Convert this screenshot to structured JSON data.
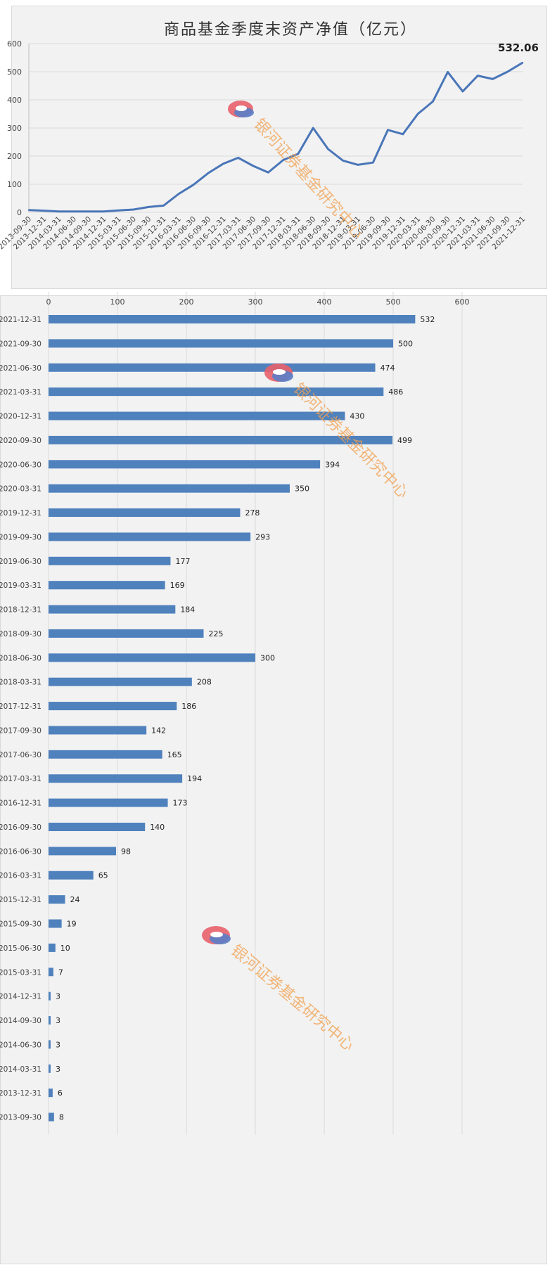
{
  "line_chart": {
    "chart_data": {
      "type": "line",
      "title": "商品基金季度末资产净值（亿元）",
      "x": [
        "2013-09-30",
        "2013-12-31",
        "2014-03-31",
        "2014-06-30",
        "2014-09-30",
        "2014-12-31",
        "2015-03-31",
        "2015-06-30",
        "2015-09-30",
        "2015-12-31",
        "2016-03-31",
        "2016-06-30",
        "2016-09-30",
        "2016-12-31",
        "2017-03-31",
        "2017-06-30",
        "2017-09-30",
        "2017-12-31",
        "2018-03-31",
        "2018-06-30",
        "2018-09-30",
        "2018-12-31",
        "2019-03-31",
        "2019-06-30",
        "2019-09-30",
        "2019-12-31",
        "2020-03-31",
        "2020-06-30",
        "2020-09-30",
        "2020-12-31",
        "2021-03-31",
        "2021-06-30",
        "2021-09-30",
        "2021-12-31"
      ],
      "series": [
        {
          "values": [
            8,
            6,
            3,
            3,
            3,
            3,
            7,
            10,
            19,
            24,
            65,
            98,
            140,
            173,
            194,
            165,
            142,
            186,
            208,
            300,
            225,
            184,
            169,
            177,
            293,
            278,
            350,
            394,
            499,
            430,
            486,
            474,
            500,
            532.06
          ]
        }
      ],
      "ylim": [
        0,
        600
      ],
      "yticks": [
        "0",
        "100",
        "200",
        "300",
        "400",
        "500",
        "600"
      ],
      "end_label": "532.06",
      "color": "#4a76b8",
      "grid": true
    }
  },
  "bar_chart": {
    "chart_data": {
      "type": "bar",
      "orientation": "horizontal",
      "categories": [
        "2021-12-31",
        "2021-09-30",
        "2021-06-30",
        "2021-03-31",
        "2020-12-31",
        "2020-09-30",
        "2020-06-30",
        "2020-03-31",
        "2019-12-31",
        "2019-09-30",
        "2019-06-30",
        "2019-03-31",
        "2018-12-31",
        "2018-09-30",
        "2018-06-30",
        "2018-03-31",
        "2017-12-31",
        "2017-09-30",
        "2017-06-30",
        "2017-03-31",
        "2016-12-31",
        "2016-09-30",
        "2016-06-30",
        "2016-03-31",
        "2015-12-31",
        "2015-09-30",
        "2015-06-30",
        "2015-03-31",
        "2014-12-31",
        "2014-09-30",
        "2014-06-30",
        "2014-03-31",
        "2013-12-31",
        "2013-09-30"
      ],
      "values": [
        532,
        500,
        474,
        486,
        430,
        499,
        394,
        350,
        278,
        293,
        177,
        169,
        184,
        225,
        300,
        208,
        186,
        142,
        165,
        194,
        173,
        140,
        98,
        65,
        24,
        19,
        10,
        7,
        3,
        3,
        3,
        3,
        6,
        8
      ],
      "data_labels": [
        "532",
        "500",
        "474",
        "486",
        "430",
        "499",
        "394",
        "350",
        "278",
        "293",
        "177",
        "169",
        "184",
        "225",
        "300",
        "208",
        "186",
        "142",
        "165",
        "194",
        "173",
        "140",
        "98",
        "65",
        "24",
        "19",
        "10",
        "7",
        "3",
        "3",
        "3",
        "3",
        "6",
        "8"
      ],
      "xlim": [
        0,
        600
      ],
      "xticks": [
        "0",
        "100",
        "200",
        "300",
        "400",
        "500",
        "600"
      ],
      "color": "#4f81bd",
      "grid": true
    }
  },
  "watermark": {
    "text": "银河证券基金研究中心",
    "logo": "galaxy-logo-icon",
    "colors": {
      "top": "#e8606a",
      "bottom": "#5a7dc8",
      "text": "#f0a050"
    }
  }
}
